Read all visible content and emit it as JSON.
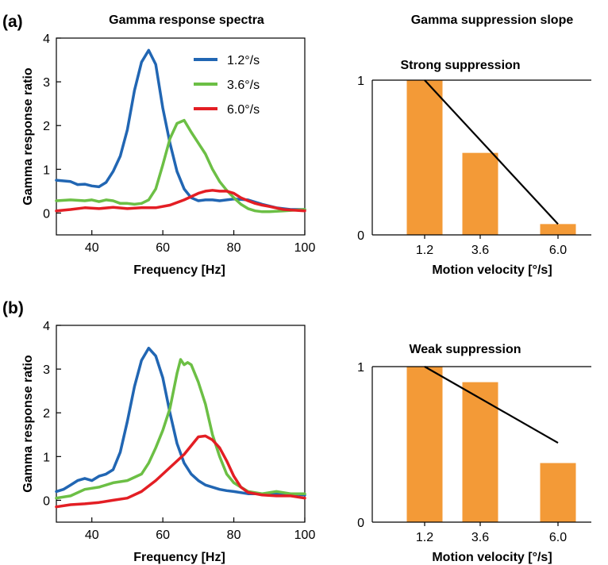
{
  "panel_labels": {
    "a": "(a)",
    "b": "(b)"
  },
  "column_titles": {
    "left": "Gamma response spectra",
    "right": "Gamma suppression slope"
  },
  "colors": {
    "series_1_2": "#2166b3",
    "series_3_6": "#6cbf45",
    "series_6_0": "#e31e24",
    "bar": "#f39a37",
    "line": "#000000"
  },
  "chart_data": [
    {
      "type": "line",
      "panel": "(a)",
      "title": "Gamma response spectra",
      "xlabel": "Frequency [Hz]",
      "ylabel": "Gamma response ratio",
      "xlim": [
        30,
        100
      ],
      "ylim": [
        -0.5,
        4
      ],
      "xticks": [
        40,
        60,
        80,
        100
      ],
      "yticks": [
        0,
        1,
        2,
        3,
        4
      ],
      "legend_position": "top-right",
      "series": [
        {
          "name": "1.2°/s",
          "color": "#2166b3",
          "x": [
            30,
            34,
            36,
            38,
            40,
            42,
            44,
            46,
            48,
            50,
            52,
            54,
            56,
            58,
            60,
            62,
            64,
            66,
            68,
            70,
            72,
            74,
            76,
            78,
            80,
            84,
            88,
            92,
            96,
            100
          ],
          "y": [
            0.75,
            0.72,
            0.65,
            0.66,
            0.62,
            0.6,
            0.7,
            0.95,
            1.3,
            1.9,
            2.8,
            3.45,
            3.72,
            3.4,
            2.4,
            1.6,
            0.95,
            0.55,
            0.35,
            0.28,
            0.3,
            0.3,
            0.28,
            0.3,
            0.32,
            0.3,
            0.2,
            0.12,
            0.08,
            0.08
          ]
        },
        {
          "name": "3.6°/s",
          "color": "#6cbf45",
          "x": [
            30,
            34,
            38,
            40,
            42,
            44,
            46,
            48,
            50,
            52,
            54,
            56,
            58,
            60,
            62,
            64,
            66,
            68,
            70,
            72,
            74,
            76,
            78,
            80,
            82,
            84,
            86,
            88,
            90,
            94,
            100
          ],
          "y": [
            0.28,
            0.3,
            0.28,
            0.3,
            0.26,
            0.3,
            0.28,
            0.22,
            0.22,
            0.2,
            0.22,
            0.3,
            0.55,
            1.1,
            1.7,
            2.05,
            2.12,
            1.85,
            1.6,
            1.35,
            1.0,
            0.72,
            0.52,
            0.35,
            0.2,
            0.1,
            0.05,
            0.03,
            0.03,
            0.05,
            0.08
          ]
        },
        {
          "name": "6.0°/s",
          "color": "#e31e24",
          "x": [
            30,
            34,
            38,
            42,
            46,
            50,
            54,
            58,
            62,
            66,
            70,
            72,
            74,
            76,
            78,
            80,
            82,
            84,
            86,
            88,
            90,
            94,
            100
          ],
          "y": [
            0.05,
            0.08,
            0.12,
            0.1,
            0.13,
            0.1,
            0.12,
            0.12,
            0.18,
            0.3,
            0.45,
            0.5,
            0.52,
            0.5,
            0.5,
            0.45,
            0.35,
            0.28,
            0.22,
            0.18,
            0.15,
            0.08,
            0.05
          ]
        }
      ]
    },
    {
      "type": "bar",
      "panel": "(a)",
      "title": "Strong suppression",
      "xlabel": "Motion velocity [°/s]",
      "ylabel": "",
      "categories": [
        "1.2",
        "3.6",
        "6.0"
      ],
      "values": [
        1.0,
        0.53,
        0.07
      ],
      "ylim": [
        0,
        1
      ],
      "yticks": [
        0,
        1
      ],
      "fit_line": {
        "start": 1.0,
        "end": 0.07
      },
      "color": "#f39a37"
    },
    {
      "type": "line",
      "panel": "(b)",
      "title": "",
      "xlabel": "Frequency [Hz]",
      "ylabel": "Gamma response ratio",
      "xlim": [
        30,
        100
      ],
      "ylim": [
        -0.5,
        4
      ],
      "xticks": [
        40,
        60,
        80,
        100
      ],
      "yticks": [
        0,
        1,
        2,
        3,
        4
      ],
      "series": [
        {
          "name": "1.2°/s",
          "color": "#2166b3",
          "x": [
            30,
            32,
            34,
            36,
            38,
            40,
            42,
            44,
            46,
            48,
            50,
            52,
            54,
            56,
            58,
            60,
            62,
            64,
            66,
            68,
            70,
            72,
            74,
            76,
            78,
            80,
            84,
            88,
            92,
            96,
            100
          ],
          "y": [
            0.2,
            0.25,
            0.35,
            0.45,
            0.5,
            0.45,
            0.55,
            0.6,
            0.7,
            1.1,
            1.8,
            2.6,
            3.2,
            3.48,
            3.3,
            2.8,
            2.0,
            1.3,
            0.85,
            0.6,
            0.45,
            0.35,
            0.3,
            0.25,
            0.22,
            0.2,
            0.15,
            0.15,
            0.15,
            0.15,
            0.12
          ]
        },
        {
          "name": "3.6°/s",
          "color": "#6cbf45",
          "x": [
            30,
            34,
            38,
            42,
            46,
            50,
            54,
            56,
            58,
            60,
            62,
            64,
            65,
            66,
            67,
            68,
            70,
            72,
            74,
            76,
            78,
            80,
            82,
            84,
            88,
            92,
            96,
            100
          ],
          "y": [
            0.05,
            0.1,
            0.25,
            0.3,
            0.4,
            0.45,
            0.6,
            0.85,
            1.2,
            1.6,
            2.1,
            2.9,
            3.22,
            3.1,
            3.15,
            3.1,
            2.7,
            2.2,
            1.5,
            1.0,
            0.6,
            0.4,
            0.3,
            0.2,
            0.15,
            0.2,
            0.15,
            0.15
          ]
        },
        {
          "name": "6.0°/s",
          "color": "#e31e24",
          "x": [
            30,
            34,
            38,
            42,
            46,
            50,
            54,
            58,
            62,
            66,
            68,
            70,
            72,
            74,
            76,
            78,
            80,
            82,
            84,
            88,
            92,
            96,
            100
          ],
          "y": [
            -0.15,
            -0.1,
            -0.08,
            -0.05,
            0.0,
            0.05,
            0.2,
            0.45,
            0.75,
            1.05,
            1.25,
            1.45,
            1.47,
            1.38,
            1.2,
            0.9,
            0.55,
            0.3,
            0.18,
            0.12,
            0.1,
            0.1,
            0.05
          ]
        }
      ]
    },
    {
      "type": "bar",
      "panel": "(b)",
      "title": "Weak suppression",
      "xlabel": "Motion velocity [°/s]",
      "ylabel": "",
      "categories": [
        "1.2",
        "3.6",
        "6.0"
      ],
      "values": [
        1.0,
        0.9,
        0.38
      ],
      "ylim": [
        0,
        1
      ],
      "yticks": [
        0,
        1
      ],
      "fit_line": {
        "start": 1.0,
        "end": 0.51
      },
      "color": "#f39a37"
    }
  ]
}
